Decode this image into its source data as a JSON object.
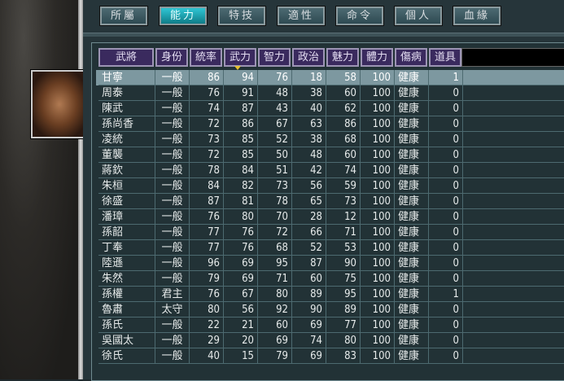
{
  "tabs": [
    {
      "label": "所屬"
    },
    {
      "label": "能力",
      "active": true
    },
    {
      "label": "特技"
    },
    {
      "label": "適性"
    },
    {
      "label": "命令"
    },
    {
      "label": "個人"
    },
    {
      "label": "血緣"
    }
  ],
  "columns": [
    "武將",
    "身份",
    "統率",
    "武力",
    "智力",
    "政治",
    "魅力",
    "體力",
    "傷病",
    "道具"
  ],
  "sorted_column": "武力",
  "selected_row": 0,
  "rows": [
    [
      "甘寧",
      "一般",
      "86",
      "94",
      "76",
      "18",
      "58",
      "100",
      "健康",
      "1"
    ],
    [
      "周泰",
      "一般",
      "76",
      "91",
      "48",
      "38",
      "60",
      "100",
      "健康",
      "0"
    ],
    [
      "陳武",
      "一般",
      "74",
      "87",
      "43",
      "40",
      "62",
      "100",
      "健康",
      "0"
    ],
    [
      "孫尚香",
      "一般",
      "72",
      "86",
      "67",
      "63",
      "86",
      "100",
      "健康",
      "0"
    ],
    [
      "凌統",
      "一般",
      "73",
      "85",
      "52",
      "38",
      "68",
      "100",
      "健康",
      "0"
    ],
    [
      "董襲",
      "一般",
      "72",
      "85",
      "50",
      "48",
      "60",
      "100",
      "健康",
      "0"
    ],
    [
      "蔣欽",
      "一般",
      "78",
      "84",
      "51",
      "42",
      "74",
      "100",
      "健康",
      "0"
    ],
    [
      "朱桓",
      "一般",
      "84",
      "82",
      "73",
      "56",
      "59",
      "100",
      "健康",
      "0"
    ],
    [
      "徐盛",
      "一般",
      "87",
      "81",
      "78",
      "65",
      "73",
      "100",
      "健康",
      "0"
    ],
    [
      "潘璋",
      "一般",
      "76",
      "80",
      "70",
      "28",
      "12",
      "100",
      "健康",
      "0"
    ],
    [
      "孫韶",
      "一般",
      "77",
      "76",
      "72",
      "66",
      "71",
      "100",
      "健康",
      "0"
    ],
    [
      "丁奉",
      "一般",
      "77",
      "76",
      "68",
      "52",
      "53",
      "100",
      "健康",
      "0"
    ],
    [
      "陸遜",
      "一般",
      "96",
      "69",
      "95",
      "87",
      "90",
      "100",
      "健康",
      "0"
    ],
    [
      "朱然",
      "一般",
      "79",
      "69",
      "71",
      "60",
      "75",
      "100",
      "健康",
      "0"
    ],
    [
      "孫權",
      "君主",
      "76",
      "67",
      "80",
      "89",
      "95",
      "100",
      "健康",
      "1"
    ],
    [
      "魯肅",
      "太守",
      "80",
      "56",
      "92",
      "90",
      "89",
      "100",
      "健康",
      "0"
    ],
    [
      "孫氏",
      "一般",
      "22",
      "21",
      "60",
      "69",
      "77",
      "100",
      "健康",
      "0"
    ],
    [
      "吳國太",
      "一般",
      "29",
      "20",
      "69",
      "74",
      "80",
      "100",
      "健康",
      "0"
    ],
    [
      "徐氏",
      "一般",
      "40",
      "15",
      "79",
      "69",
      "83",
      "100",
      "健康",
      "0"
    ]
  ],
  "colors": {
    "active_tab": "#1fa8b6",
    "header": "#3a2a5e",
    "selected_row": "#7d98a0",
    "sort_arrow": "#e8c030"
  }
}
